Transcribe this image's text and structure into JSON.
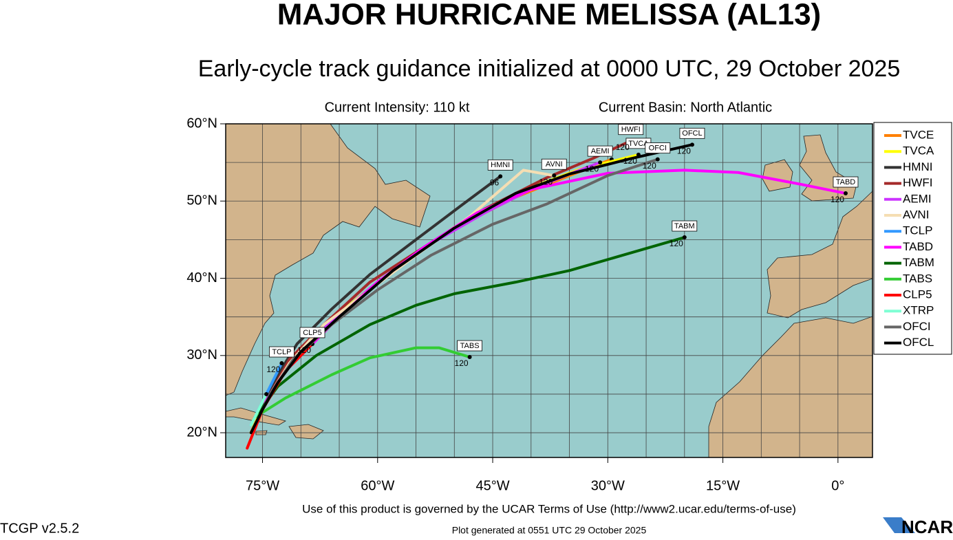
{
  "header": {
    "title": "MAJOR HURRICANE MELISSA (AL13)",
    "subtitle": "Early-cycle track guidance initialized at 0000 UTC, 29 October 2025",
    "intensity": "Current Intensity: 110 kt",
    "basin": "Current Basin: North Atlantic"
  },
  "map": {
    "xlim": [
      -79.8,
      4.5
    ],
    "ylim": [
      16.8,
      60
    ],
    "xticks": [
      {
        "value": -75,
        "label": "75°W"
      },
      {
        "value": -60,
        "label": "60°W"
      },
      {
        "value": -45,
        "label": "45°W"
      },
      {
        "value": -30,
        "label": "30°W"
      },
      {
        "value": -15,
        "label": "15°W"
      },
      {
        "value": 0,
        "label": "0°"
      }
    ],
    "yticks": [
      {
        "value": 20,
        "label": "20°N"
      },
      {
        "value": 30,
        "label": "30°N"
      },
      {
        "value": 40,
        "label": "40°N"
      },
      {
        "value": 50,
        "label": "50°N"
      },
      {
        "value": 60,
        "label": "60°N"
      }
    ],
    "xgrid": [
      -75,
      -70,
      -65,
      -60,
      -55,
      -50,
      -45,
      -40,
      -35,
      -30,
      -25,
      -20,
      -15,
      -10,
      -5,
      0
    ],
    "ygrid": [
      20,
      25,
      30,
      35,
      40,
      45,
      50,
      55
    ],
    "ocean_color": "#99cccc",
    "land_color": "#d2b48c",
    "tracks": [
      {
        "name": "TVCE",
        "color": "#ff8000",
        "lon": [
          -76.5,
          -75,
          -73,
          -70,
          -65,
          -58,
          -50,
          -42,
          -35,
          -29.5
        ],
        "lat": [
          20,
          23.5,
          27,
          31,
          35.5,
          41,
          46.5,
          50.5,
          53.3,
          55.4
        ]
      },
      {
        "name": "TVCA",
        "color": "#ffff00",
        "lon": [
          -76.5,
          -75,
          -73,
          -70,
          -65,
          -58,
          -50,
          -42,
          -34,
          -26
        ],
        "lat": [
          20,
          23.5,
          27,
          31,
          35.5,
          41,
          46.6,
          51,
          54,
          56
        ],
        "end_label": "120",
        "boxed": true
      },
      {
        "name": "HMNI",
        "color": "#333333",
        "lon": [
          -75,
          -73,
          -70.5,
          -66,
          -61,
          -55,
          -49,
          -44
        ],
        "lat": [
          23.5,
          27.5,
          31.5,
          36,
          40.5,
          45,
          49.5,
          53.2
        ],
        "end_label": "96",
        "boxed": true
      },
      {
        "name": "HWFI",
        "color": "#a52a2a",
        "lon": [
          -76,
          -74,
          -71.5,
          -67,
          -61,
          -54,
          -46,
          -38,
          -32,
          -27
        ],
        "lat": [
          21,
          25,
          29.5,
          34,
          39.5,
          44,
          49,
          53,
          55.5,
          57.8
        ],
        "end_label": "120",
        "boxed": true
      },
      {
        "name": "AEMI",
        "color": "#cc33ff",
        "lon": [
          -76,
          -74,
          -71,
          -66,
          -60,
          -53,
          -46,
          -40,
          -35,
          -31
        ],
        "lat": [
          21,
          25,
          29.5,
          34.5,
          39.5,
          44.5,
          48.5,
          51.5,
          53.5,
          55
        ],
        "end_label": "120",
        "boxed": true
      },
      {
        "name": "AVNI",
        "color": "#f5deb3",
        "lon": [
          -76,
          -74,
          -71.5,
          -67,
          -61,
          -55,
          -48,
          -41,
          -37
        ],
        "lat": [
          21,
          25,
          29,
          34,
          38.5,
          43,
          48,
          54,
          53.3
        ],
        "end_label": "120",
        "boxed": true
      },
      {
        "name": "TCLP",
        "color": "#3399ff",
        "lon": [
          -76.5,
          -74.5,
          -72.5
        ],
        "lat": [
          21,
          25,
          29
        ],
        "end_label": "120",
        "boxed": true
      },
      {
        "name": "TABD",
        "color": "#ff00ff",
        "lon": [
          -76,
          -72,
          -66,
          -60,
          -54,
          -47,
          -40,
          -30,
          -20,
          -13,
          -5,
          1
        ],
        "lat": [
          22,
          28,
          34,
          39.5,
          44,
          48.5,
          51.5,
          53.6,
          54,
          53.7,
          52.2,
          51
        ],
        "end_label": "120",
        "boxed": true
      },
      {
        "name": "TABM",
        "color": "#006400",
        "lon": [
          -76,
          -73,
          -68,
          -61,
          -55,
          -50,
          -42,
          -35,
          -28,
          -20
        ],
        "lat": [
          22,
          26,
          30,
          34,
          36.5,
          38,
          39.5,
          41,
          43,
          45.3
        ],
        "end_label": "120",
        "boxed": true
      },
      {
        "name": "TABS",
        "color": "#33cc33",
        "lon": [
          -76,
          -72,
          -66,
          -61,
          -55,
          -52,
          -48
        ],
        "lat": [
          22,
          24.5,
          27.5,
          29.7,
          31,
          31,
          29.8
        ],
        "end_label": "120",
        "boxed": true
      },
      {
        "name": "CLP5",
        "color": "#ff0000",
        "lon": [
          -77,
          -75,
          -72,
          -68.5
        ],
        "lat": [
          18,
          23,
          28,
          31.5
        ],
        "end_label": "120",
        "boxed": true
      },
      {
        "name": "XTRP",
        "color": "#7fffd4",
        "lon": [
          -76.5,
          -75.5,
          -74.5
        ],
        "lat": [
          21,
          23,
          25
        ]
      },
      {
        "name": "OFCI",
        "color": "#666666",
        "lon": [
          -76,
          -74,
          -71,
          -66,
          -60,
          -53,
          -45,
          -38,
          -30,
          -23.5
        ],
        "lat": [
          21,
          25,
          29.5,
          34,
          38.5,
          43,
          47,
          49.6,
          53.3,
          55.4
        ],
        "end_label": "120",
        "boxed": true
      },
      {
        "name": "OFCL",
        "color": "#000000",
        "lon": [
          -76.5,
          -75,
          -73,
          -70,
          -65,
          -58,
          -50,
          -42,
          -35,
          -27,
          -19
        ],
        "lat": [
          20,
          23,
          26.5,
          30.5,
          35,
          41,
          46.5,
          51,
          53.5,
          55.5,
          57.3
        ],
        "end_label": "120",
        "boxed": true
      }
    ]
  },
  "footer": {
    "terms": "Use of this product is governed by the UCAR Terms of Use (http://www2.ucar.edu/terms-of-use)",
    "version": "TCGP v2.5.2",
    "generated": "Plot generated at 0551 UTC   29 October 2025",
    "logo": "NCAR"
  }
}
